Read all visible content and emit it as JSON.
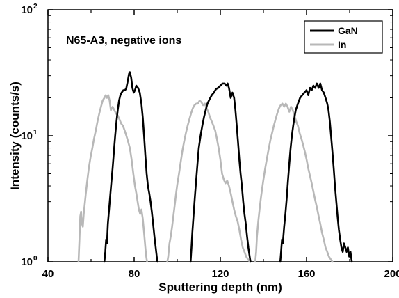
{
  "chart_data": {
    "type": "line",
    "annotation": "N65-A3, negative ions",
    "xlabel": "Sputtering depth (nm)",
    "ylabel": "Intensity (counts/s)",
    "xlim": [
      40,
      200
    ],
    "ylim": [
      1,
      100
    ],
    "y_scale": "log",
    "x_ticks": [
      40,
      80,
      120,
      160,
      200
    ],
    "x_tick_labels": [
      "40",
      "80",
      "120",
      "160",
      "200"
    ],
    "y_ticks": [
      1,
      10,
      100
    ],
    "y_tick_labels": [
      {
        "base": "10",
        "exp": "0"
      },
      {
        "base": "10",
        "exp": "1"
      },
      {
        "base": "10",
        "exp": "2"
      }
    ],
    "legend_position": "top-right",
    "grid": false,
    "series": [
      {
        "name": "GaN",
        "color": "#000000",
        "points": [
          [
            66.2,
            1
          ],
          [
            66.6,
            1.2
          ],
          [
            67.0,
            1.5
          ],
          [
            67.4,
            1.4
          ],
          [
            67.8,
            2.0
          ],
          [
            68.2,
            2.4
          ],
          [
            68.8,
            3.2
          ],
          [
            69.4,
            4.2
          ],
          [
            70.0,
            5.5
          ],
          [
            70.6,
            7.5
          ],
          [
            71.2,
            10
          ],
          [
            71.8,
            13
          ],
          [
            72.4,
            16
          ],
          [
            73.0,
            19
          ],
          [
            73.6,
            21
          ],
          [
            74.2,
            22
          ],
          [
            75.0,
            23
          ],
          [
            75.8,
            23
          ],
          [
            76.4,
            24
          ],
          [
            77.0,
            27
          ],
          [
            77.6,
            31
          ],
          [
            78.0,
            32
          ],
          [
            78.6,
            29
          ],
          [
            79.2,
            24
          ],
          [
            79.8,
            22
          ],
          [
            80.4,
            23
          ],
          [
            81.0,
            25
          ],
          [
            81.8,
            24
          ],
          [
            82.6,
            22
          ],
          [
            83.4,
            18
          ],
          [
            84.0,
            14
          ],
          [
            84.6,
            10
          ],
          [
            85.2,
            7
          ],
          [
            85.8,
            5
          ],
          [
            86.4,
            4
          ],
          [
            87.0,
            3.5
          ],
          [
            87.6,
            3
          ],
          [
            88.2,
            2.5
          ],
          [
            88.8,
            2
          ],
          [
            89.4,
            1.6
          ],
          [
            90.0,
            1.3
          ],
          [
            90.5,
            1.1
          ],
          [
            90.8,
            1
          ],
          null,
          [
            106.2,
            1
          ],
          [
            106.6,
            1.3
          ],
          [
            107.0,
            1.7
          ],
          [
            107.6,
            2.4
          ],
          [
            108.2,
            3.3
          ],
          [
            108.8,
            4.5
          ],
          [
            109.4,
            6
          ],
          [
            110.0,
            8
          ],
          [
            110.8,
            10
          ],
          [
            111.6,
            12
          ],
          [
            112.4,
            14
          ],
          [
            113.2,
            16
          ],
          [
            114.0,
            18
          ],
          [
            115.0,
            19.5
          ],
          [
            116.0,
            21
          ],
          [
            117.0,
            22
          ],
          [
            118.0,
            23.5
          ],
          [
            119.0,
            24
          ],
          [
            120.0,
            25
          ],
          [
            121.0,
            26
          ],
          [
            122.0,
            26
          ],
          [
            122.8,
            25
          ],
          [
            123.4,
            26
          ],
          [
            124.0,
            24
          ],
          [
            124.8,
            20
          ],
          [
            125.6,
            22
          ],
          [
            126.4,
            20
          ],
          [
            127.0,
            16
          ],
          [
            127.6,
            12
          ],
          [
            128.2,
            9
          ],
          [
            128.8,
            6.5
          ],
          [
            129.4,
            5
          ],
          [
            130.0,
            4
          ],
          [
            130.6,
            3
          ],
          [
            131.2,
            2.4
          ],
          [
            131.8,
            2
          ],
          [
            132.4,
            1.6
          ],
          [
            133.0,
            1.3
          ],
          [
            133.6,
            1.1
          ],
          [
            134.0,
            1
          ],
          null,
          [
            147.8,
            1
          ],
          [
            148.2,
            1.2
          ],
          [
            148.6,
            1.5
          ],
          [
            149.0,
            1.4
          ],
          [
            149.6,
            1.9
          ],
          [
            150.2,
            2.4
          ],
          [
            150.8,
            3.2
          ],
          [
            151.4,
            4.4
          ],
          [
            152.0,
            6
          ],
          [
            152.6,
            8
          ],
          [
            153.2,
            10
          ],
          [
            153.8,
            12
          ],
          [
            154.4,
            14
          ],
          [
            155.0,
            16
          ],
          [
            156.0,
            18
          ],
          [
            157.0,
            20
          ],
          [
            158.0,
            21
          ],
          [
            159.0,
            22
          ],
          [
            160.0,
            23
          ],
          [
            160.8,
            21
          ],
          [
            161.6,
            24
          ],
          [
            162.4,
            23
          ],
          [
            163.2,
            25
          ],
          [
            164.0,
            24
          ],
          [
            164.8,
            26
          ],
          [
            165.6,
            24
          ],
          [
            166.4,
            26
          ],
          [
            167.2,
            23
          ],
          [
            168.0,
            22
          ],
          [
            168.8,
            20
          ],
          [
            169.6,
            18
          ],
          [
            170.2,
            16
          ],
          [
            170.8,
            13
          ],
          [
            171.4,
            10
          ],
          [
            172.0,
            7.5
          ],
          [
            172.6,
            5.5
          ],
          [
            173.2,
            4
          ],
          [
            173.8,
            3
          ],
          [
            174.4,
            2.3
          ],
          [
            175.0,
            1.8
          ],
          [
            175.6,
            1.5
          ],
          [
            176.2,
            1.3
          ],
          [
            176.8,
            1.2
          ],
          [
            177.4,
            1.4
          ],
          [
            178.0,
            1.3
          ],
          [
            178.6,
            1.2
          ],
          [
            179.2,
            1.3
          ],
          [
            179.8,
            1.1
          ],
          [
            180.4,
            1.2
          ],
          [
            181.0,
            1
          ]
        ]
      },
      {
        "name": "In",
        "color": "#b8b8b8",
        "points": [
          [
            54.2,
            1
          ],
          [
            54.6,
            1.5
          ],
          [
            55.0,
            2.3
          ],
          [
            55.4,
            2.5
          ],
          [
            55.8,
            2.0
          ],
          [
            56.2,
            1.9
          ],
          [
            56.6,
            2.4
          ],
          [
            57.2,
            3
          ],
          [
            57.8,
            3.8
          ],
          [
            58.4,
            4.6
          ],
          [
            59.0,
            5.6
          ],
          [
            59.8,
            6.8
          ],
          [
            60.6,
            8
          ],
          [
            61.4,
            9.5
          ],
          [
            62.2,
            11
          ],
          [
            63.0,
            13
          ],
          [
            63.8,
            15
          ],
          [
            64.6,
            17
          ],
          [
            65.4,
            19
          ],
          [
            66.2,
            20
          ],
          [
            66.8,
            21
          ],
          [
            67.4,
            20
          ],
          [
            68.0,
            21
          ],
          [
            68.6,
            19
          ],
          [
            69.2,
            16
          ],
          [
            70.0,
            17
          ],
          [
            70.8,
            16
          ],
          [
            71.6,
            15
          ],
          [
            72.4,
            14.5
          ],
          [
            73.2,
            13.5
          ],
          [
            74.0,
            12.5
          ],
          [
            74.8,
            12
          ],
          [
            75.6,
            11
          ],
          [
            76.4,
            10
          ],
          [
            77.2,
            9
          ],
          [
            78.0,
            8
          ],
          [
            78.8,
            6.5
          ],
          [
            79.6,
            5
          ],
          [
            80.4,
            4
          ],
          [
            81.0,
            3.5
          ],
          [
            81.6,
            3
          ],
          [
            82.2,
            2.6
          ],
          [
            82.8,
            2.4
          ],
          [
            83.4,
            2.6
          ],
          [
            84.0,
            2.2
          ],
          [
            84.6,
            1.7
          ],
          [
            85.2,
            1.3
          ],
          [
            85.6,
            1.1
          ],
          [
            86.0,
            1
          ],
          null,
          [
            95.4,
            1
          ],
          [
            95.8,
            1.1
          ],
          [
            96.4,
            1.4
          ],
          [
            97.0,
            1.6
          ],
          [
            97.6,
            1.9
          ],
          [
            98.2,
            2.3
          ],
          [
            98.8,
            2.8
          ],
          [
            99.4,
            3.4
          ],
          [
            100.0,
            4.1
          ],
          [
            100.8,
            5
          ],
          [
            101.6,
            6.2
          ],
          [
            102.4,
            7.6
          ],
          [
            103.2,
            9
          ],
          [
            104.0,
            10.5
          ],
          [
            104.8,
            12
          ],
          [
            105.6,
            13.5
          ],
          [
            106.4,
            15
          ],
          [
            107.2,
            16.5
          ],
          [
            108.0,
            17.5
          ],
          [
            108.8,
            18
          ],
          [
            109.6,
            18
          ],
          [
            110.4,
            19
          ],
          [
            111.2,
            18.5
          ],
          [
            112.0,
            17.5
          ],
          [
            112.8,
            18
          ],
          [
            113.6,
            16.5
          ],
          [
            114.4,
            15.5
          ],
          [
            115.2,
            14
          ],
          [
            116.0,
            13
          ],
          [
            116.8,
            12
          ],
          [
            117.6,
            11
          ],
          [
            118.4,
            9.5
          ],
          [
            119.2,
            8
          ],
          [
            120.0,
            6.5
          ],
          [
            120.8,
            5
          ],
          [
            121.6,
            4.5
          ],
          [
            122.4,
            4.2
          ],
          [
            123.2,
            4.4
          ],
          [
            124.0,
            4
          ],
          [
            124.8,
            3.5
          ],
          [
            125.6,
            3
          ],
          [
            126.4,
            2.6
          ],
          [
            127.2,
            2.3
          ],
          [
            128.0,
            2.1
          ],
          [
            128.8,
            1.8
          ],
          [
            129.6,
            1.5
          ],
          [
            130.4,
            1.3
          ],
          [
            131.2,
            1.2
          ],
          [
            132.0,
            1.1
          ],
          [
            132.8,
            1.05
          ],
          [
            133.6,
            1
          ],
          null,
          [
            136.2,
            1
          ],
          [
            136.6,
            1.2
          ],
          [
            137.0,
            1.6
          ],
          [
            137.6,
            2.1
          ],
          [
            138.2,
            2.6
          ],
          [
            138.8,
            3.2
          ],
          [
            139.4,
            3.8
          ],
          [
            140.0,
            4.5
          ],
          [
            140.8,
            5.5
          ],
          [
            141.6,
            6.6
          ],
          [
            142.4,
            7.8
          ],
          [
            143.2,
            9.2
          ],
          [
            144.0,
            10.5
          ],
          [
            144.8,
            12
          ],
          [
            145.6,
            13.5
          ],
          [
            146.4,
            15
          ],
          [
            147.2,
            16.5
          ],
          [
            148.0,
            17.5
          ],
          [
            148.8,
            18
          ],
          [
            149.6,
            17
          ],
          [
            150.4,
            18
          ],
          [
            151.2,
            17
          ],
          [
            152.0,
            15.5
          ],
          [
            152.8,
            17
          ],
          [
            153.6,
            16
          ],
          [
            154.4,
            14.5
          ],
          [
            155.2,
            13
          ],
          [
            156.0,
            12
          ],
          [
            156.8,
            10.5
          ],
          [
            157.6,
            9.5
          ],
          [
            158.4,
            8.5
          ],
          [
            159.2,
            7.5
          ],
          [
            160.0,
            6.5
          ],
          [
            160.8,
            5.5
          ],
          [
            161.6,
            4.8
          ],
          [
            162.4,
            4.2
          ],
          [
            163.2,
            3.6
          ],
          [
            164.0,
            3.1
          ],
          [
            164.8,
            2.7
          ],
          [
            165.6,
            2.3
          ],
          [
            166.4,
            2
          ],
          [
            167.2,
            1.7
          ],
          [
            168.0,
            1.5
          ],
          [
            168.8,
            1.3
          ],
          [
            169.6,
            1.2
          ],
          [
            170.4,
            1.1
          ],
          [
            171.2,
            1.05
          ],
          [
            172.0,
            1
          ]
        ]
      }
    ]
  }
}
